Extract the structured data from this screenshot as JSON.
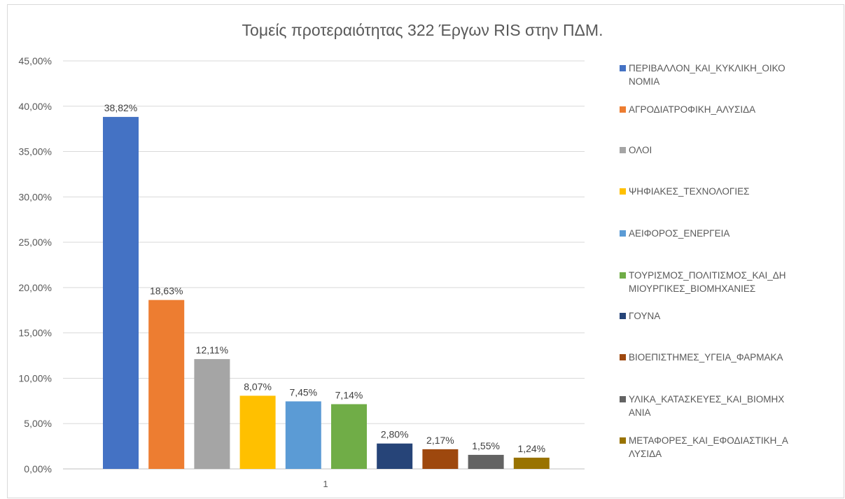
{
  "chart_data": {
    "type": "bar",
    "title": "Τομείς προτεραιότητας 322 Έργων RIS στην ΠΔΜ.",
    "categories": [
      "1"
    ],
    "ylim": [
      0,
      45
    ],
    "yticks": [
      "0,00%",
      "5,00%",
      "10,00%",
      "15,00%",
      "20,00%",
      "25,00%",
      "30,00%",
      "35,00%",
      "40,00%",
      "45,00%"
    ],
    "grid": true,
    "legend_position": "right",
    "series": [
      {
        "name": "ΠΕΡΙΒΑΛΛΟΝ_ΚΑΙ_ΚΥΚΛΙΚΗ_ΟΙΚΟΝΟΜΙΑ",
        "value": 38.82,
        "label": "38,82%",
        "color": "#4472c4"
      },
      {
        "name": "ΑΓΡΟΔΙΑΤΡΟΦΙΚΗ_ΑΛΥΣΙΔΑ",
        "value": 18.63,
        "label": "18,63%",
        "color": "#ed7d31"
      },
      {
        "name": "ΟΛΟΙ",
        "value": 12.11,
        "label": "12,11%",
        "color": "#a5a5a5"
      },
      {
        "name": "ΨΗΦΙΑΚΕΣ_ΤΕΧΝΟΛΟΓΙΕΣ",
        "value": 8.07,
        "label": "8,07%",
        "color": "#ffc000"
      },
      {
        "name": "ΑΕΙΦΟΡΟΣ_ΕΝΕΡΓΕΙΑ",
        "value": 7.45,
        "label": "7,45%",
        "color": "#5b9bd5"
      },
      {
        "name": "ΤΟΥΡΙΣΜΟΣ_ΠΟΛΙΤΙΣΜΟΣ_ΚΑΙ_ΔΗΜΙΟΥΡΓΙΚΕΣ_ΒΙΟΜΗΧΑΝΙΕΣ",
        "value": 7.14,
        "label": "7,14%",
        "color": "#70ad47"
      },
      {
        "name": "ΓΟΥΝΑ",
        "value": 2.8,
        "label": "2,80%",
        "color": "#264478"
      },
      {
        "name": "ΒΙΟΕΠΙΣΤΗΜΕΣ_ΥΓΕΙΑ_ΦΑΡΜΑΚΑ",
        "value": 2.17,
        "label": "2,17%",
        "color": "#9e480e"
      },
      {
        "name": "ΥΛΙΚΑ_ΚΑΤΑΣΚΕΥΕΣ_ΚΑΙ_ΒΙΟΜΗΧΑΝΙΑ",
        "value": 1.55,
        "label": "1,55%",
        "color": "#636363"
      },
      {
        "name": "ΜΕΤΑΦΟΡΕΣ_ΚΑΙ_ΕΦΟΔΙΑΣΤΙΚΗ_ΑΛΥΣΙΔΑ",
        "value": 1.24,
        "label": "1,24%",
        "color": "#997300"
      }
    ]
  }
}
